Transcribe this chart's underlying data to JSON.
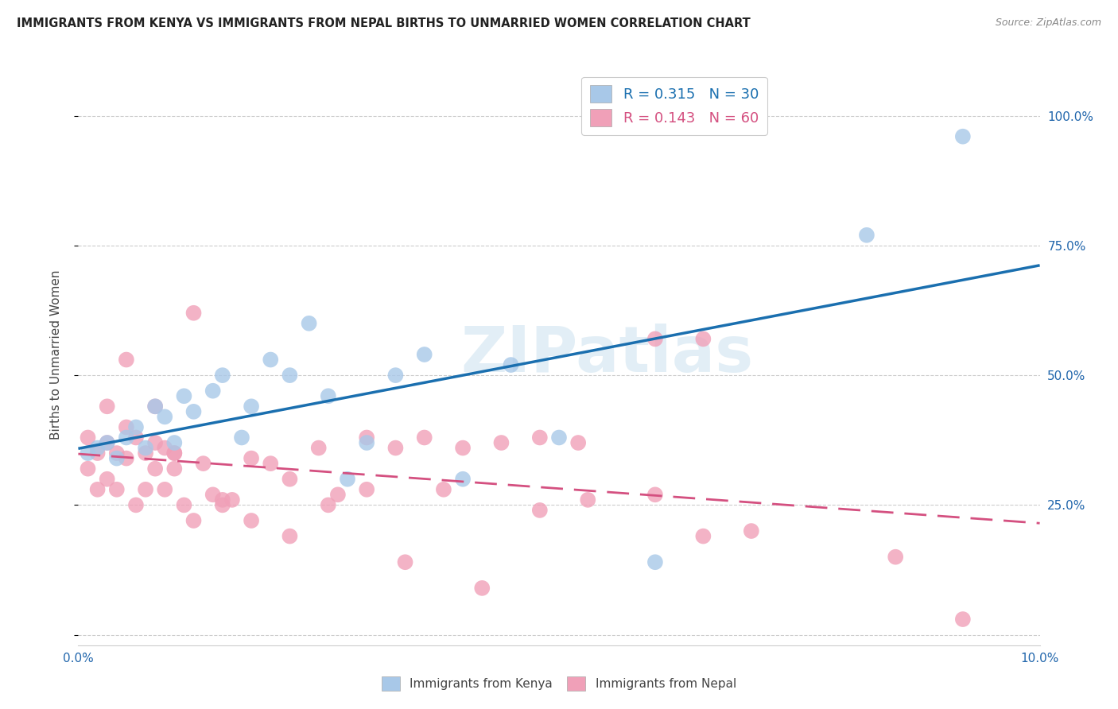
{
  "title": "IMMIGRANTS FROM KENYA VS IMMIGRANTS FROM NEPAL BIRTHS TO UNMARRIED WOMEN CORRELATION CHART",
  "source": "Source: ZipAtlas.com",
  "ylabel": "Births to Unmarried Women",
  "xlim": [
    0.0,
    0.1
  ],
  "ylim": [
    -0.02,
    1.1
  ],
  "yticks": [
    0.0,
    0.25,
    0.5,
    0.75,
    1.0
  ],
  "ytick_labels": [
    "",
    "25.0%",
    "50.0%",
    "75.0%",
    "100.0%"
  ],
  "xtick_positions": [
    0.0,
    0.02,
    0.04,
    0.06,
    0.08,
    0.1
  ],
  "xtick_labels": [
    "0.0%",
    "",
    "",
    "",
    "",
    "10.0%"
  ],
  "kenya_color": "#a8c8e8",
  "nepal_color": "#f0a0b8",
  "kenya_line_color": "#1a6faf",
  "nepal_line_color": "#d45080",
  "kenya_R": 0.315,
  "kenya_N": 30,
  "nepal_R": 0.143,
  "nepal_N": 60,
  "watermark": "ZIPatlas",
  "background_color": "#ffffff",
  "kenya_x": [
    0.001,
    0.002,
    0.003,
    0.004,
    0.005,
    0.006,
    0.007,
    0.008,
    0.009,
    0.01,
    0.011,
    0.012,
    0.014,
    0.015,
    0.017,
    0.018,
    0.02,
    0.022,
    0.024,
    0.026,
    0.028,
    0.03,
    0.033,
    0.036,
    0.04,
    0.045,
    0.05,
    0.06,
    0.082,
    0.092
  ],
  "kenya_y": [
    0.35,
    0.36,
    0.37,
    0.34,
    0.38,
    0.4,
    0.36,
    0.44,
    0.42,
    0.37,
    0.46,
    0.43,
    0.47,
    0.5,
    0.38,
    0.44,
    0.53,
    0.5,
    0.6,
    0.46,
    0.3,
    0.37,
    0.5,
    0.54,
    0.3,
    0.52,
    0.38,
    0.14,
    0.77,
    0.96
  ],
  "nepal_x": [
    0.001,
    0.001,
    0.002,
    0.002,
    0.003,
    0.003,
    0.004,
    0.004,
    0.005,
    0.005,
    0.006,
    0.006,
    0.007,
    0.007,
    0.008,
    0.008,
    0.009,
    0.009,
    0.01,
    0.01,
    0.011,
    0.012,
    0.013,
    0.014,
    0.015,
    0.016,
    0.018,
    0.02,
    0.022,
    0.025,
    0.027,
    0.03,
    0.033,
    0.036,
    0.04,
    0.044,
    0.048,
    0.052,
    0.06,
    0.065,
    0.003,
    0.005,
    0.008,
    0.01,
    0.012,
    0.015,
    0.018,
    0.022,
    0.026,
    0.03,
    0.034,
    0.038,
    0.042,
    0.048,
    0.053,
    0.06,
    0.065,
    0.07,
    0.085,
    0.092
  ],
  "nepal_y": [
    0.38,
    0.32,
    0.35,
    0.28,
    0.37,
    0.3,
    0.35,
    0.28,
    0.4,
    0.34,
    0.38,
    0.25,
    0.35,
    0.28,
    0.37,
    0.32,
    0.36,
    0.28,
    0.35,
    0.32,
    0.25,
    0.22,
    0.33,
    0.27,
    0.25,
    0.26,
    0.34,
    0.33,
    0.3,
    0.36,
    0.27,
    0.38,
    0.36,
    0.38,
    0.36,
    0.37,
    0.38,
    0.37,
    0.57,
    0.57,
    0.44,
    0.53,
    0.44,
    0.35,
    0.62,
    0.26,
    0.22,
    0.19,
    0.25,
    0.28,
    0.14,
    0.28,
    0.09,
    0.24,
    0.26,
    0.27,
    0.19,
    0.2,
    0.15,
    0.03
  ]
}
